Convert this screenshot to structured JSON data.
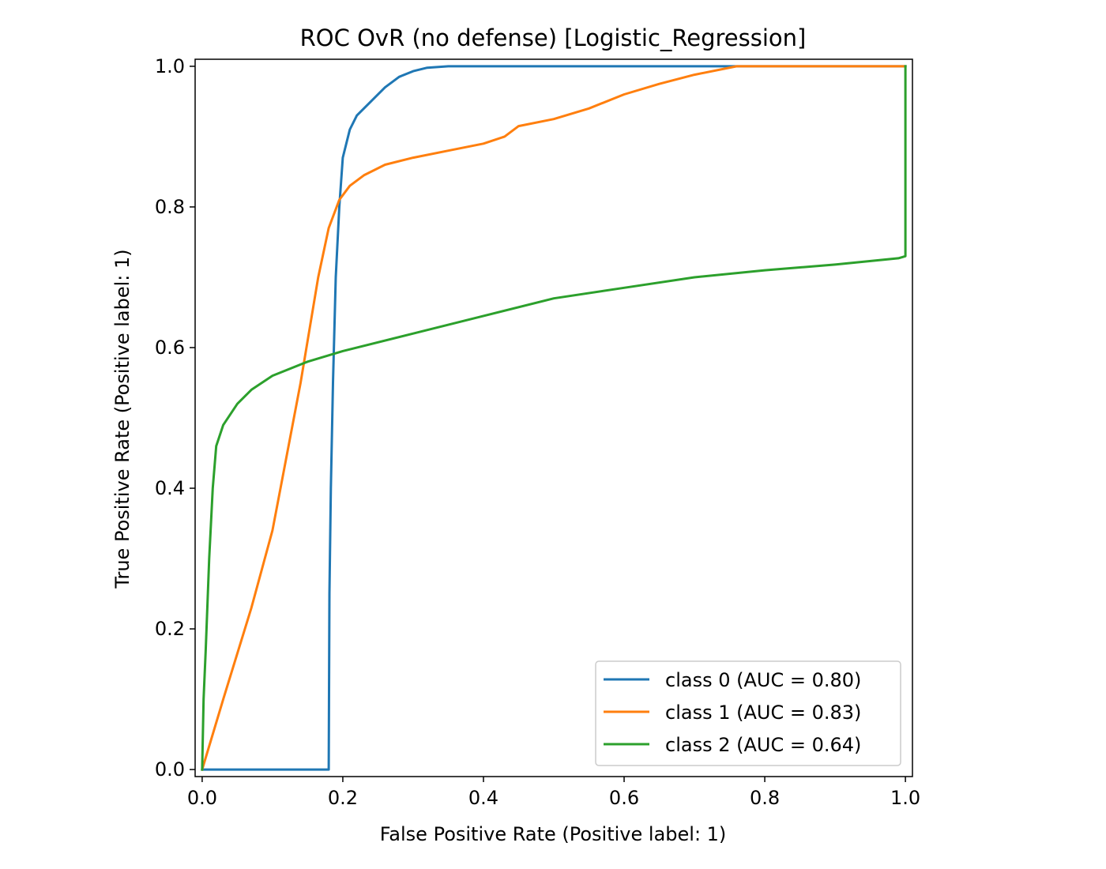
{
  "chart_data": {
    "type": "line",
    "title": "ROC OvR (no defense) [Logistic_Regression]",
    "xlabel": "False Positive Rate (Positive label: 1)",
    "ylabel": "True Positive Rate (Positive label: 1)",
    "xlim": [
      -0.01,
      1.01
    ],
    "ylim": [
      -0.01,
      1.01
    ],
    "xticks": [
      "0.0",
      "0.2",
      "0.4",
      "0.6",
      "0.8",
      "1.0"
    ],
    "yticks": [
      "0.0",
      "0.2",
      "0.4",
      "0.6",
      "0.8",
      "1.0"
    ],
    "grid": false,
    "legend_position": "lower-right",
    "series": [
      {
        "name": "class 0 (AUC = 0.80)",
        "color": "#1f77b4",
        "points": [
          [
            0.0,
            0.0
          ],
          [
            0.18,
            0.0
          ],
          [
            0.181,
            0.25
          ],
          [
            0.183,
            0.4
          ],
          [
            0.186,
            0.55
          ],
          [
            0.19,
            0.7
          ],
          [
            0.195,
            0.8
          ],
          [
            0.2,
            0.87
          ],
          [
            0.21,
            0.91
          ],
          [
            0.22,
            0.93
          ],
          [
            0.24,
            0.95
          ],
          [
            0.26,
            0.97
          ],
          [
            0.28,
            0.985
          ],
          [
            0.3,
            0.993
          ],
          [
            0.32,
            0.998
          ],
          [
            0.35,
            1.0
          ],
          [
            1.0,
            1.0
          ]
        ]
      },
      {
        "name": "class 1 (AUC = 0.83)",
        "color": "#ff7f0e",
        "points": [
          [
            0.0,
            0.0
          ],
          [
            0.03,
            0.1
          ],
          [
            0.07,
            0.23
          ],
          [
            0.1,
            0.34
          ],
          [
            0.14,
            0.55
          ],
          [
            0.165,
            0.7
          ],
          [
            0.18,
            0.77
          ],
          [
            0.195,
            0.81
          ],
          [
            0.21,
            0.83
          ],
          [
            0.23,
            0.845
          ],
          [
            0.26,
            0.86
          ],
          [
            0.3,
            0.87
          ],
          [
            0.35,
            0.88
          ],
          [
            0.4,
            0.89
          ],
          [
            0.43,
            0.9
          ],
          [
            0.45,
            0.915
          ],
          [
            0.5,
            0.925
          ],
          [
            0.55,
            0.94
          ],
          [
            0.6,
            0.96
          ],
          [
            0.65,
            0.975
          ],
          [
            0.7,
            0.988
          ],
          [
            0.76,
            1.0
          ],
          [
            1.0,
            1.0
          ]
        ]
      },
      {
        "name": "class 2 (AUC = 0.64)",
        "color": "#2ca02c",
        "points": [
          [
            0.0,
            0.0
          ],
          [
            0.002,
            0.1
          ],
          [
            0.005,
            0.17
          ],
          [
            0.01,
            0.3
          ],
          [
            0.015,
            0.4
          ],
          [
            0.02,
            0.46
          ],
          [
            0.03,
            0.49
          ],
          [
            0.05,
            0.52
          ],
          [
            0.07,
            0.54
          ],
          [
            0.1,
            0.56
          ],
          [
            0.15,
            0.58
          ],
          [
            0.2,
            0.595
          ],
          [
            0.3,
            0.62
          ],
          [
            0.4,
            0.645
          ],
          [
            0.5,
            0.67
          ],
          [
            0.6,
            0.685
          ],
          [
            0.7,
            0.7
          ],
          [
            0.8,
            0.71
          ],
          [
            0.9,
            0.718
          ],
          [
            0.99,
            0.727
          ],
          [
            1.0,
            0.73
          ],
          [
            1.0,
            1.0
          ]
        ]
      }
    ]
  }
}
